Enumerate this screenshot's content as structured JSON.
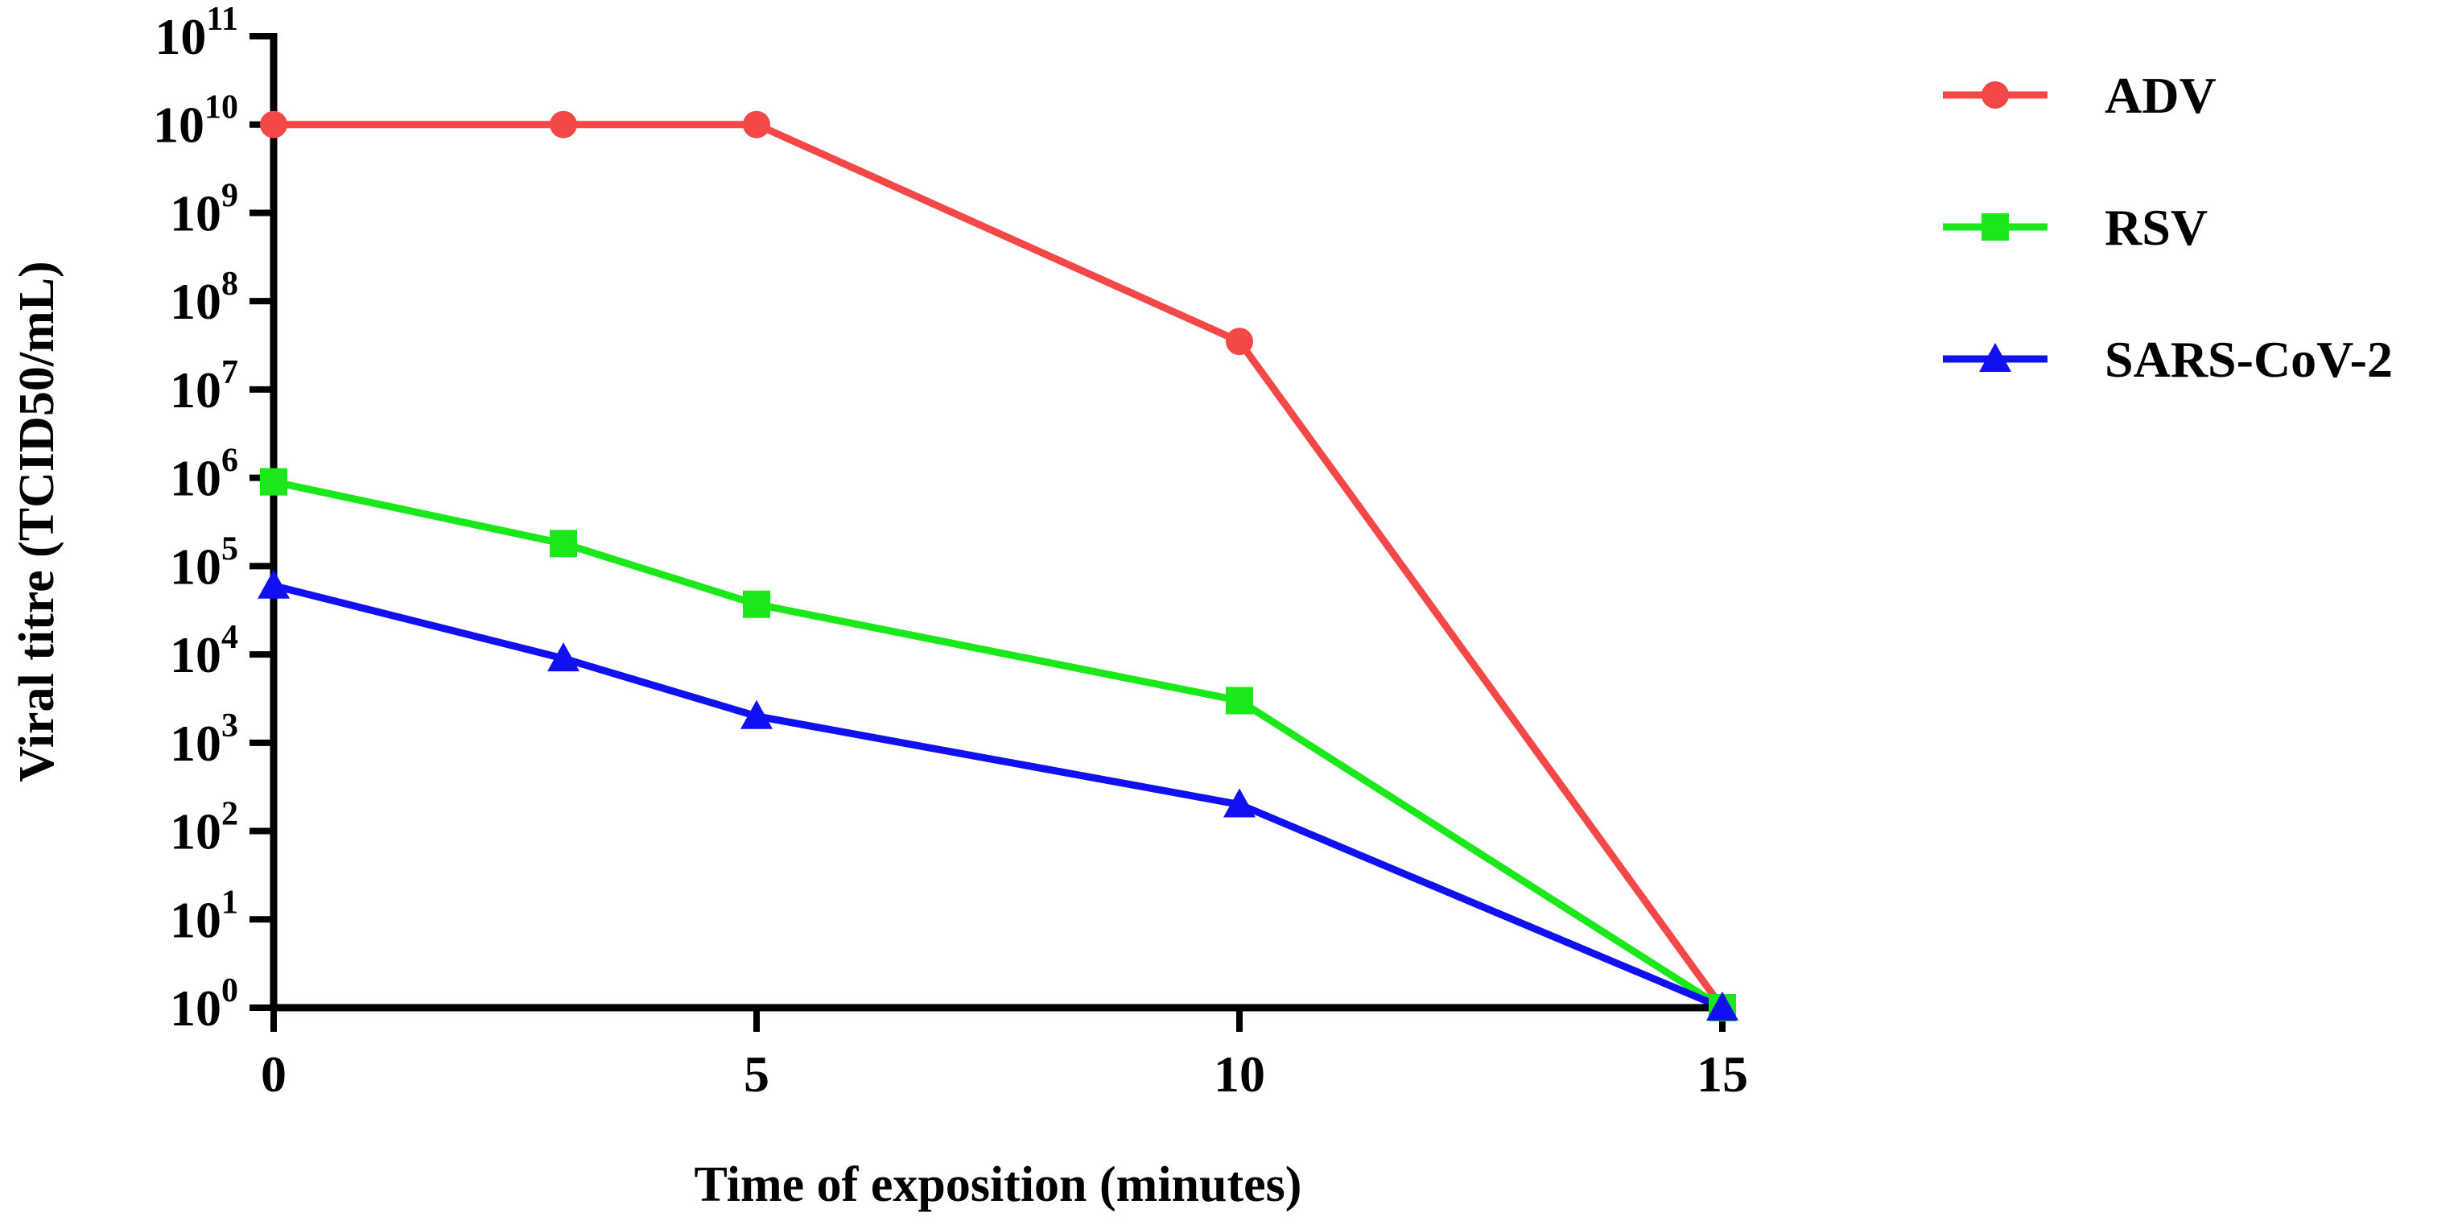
{
  "chart_data": {
    "type": "line",
    "xlabel": "Time of exposition (minutes)",
    "ylabel": "Viral titre (TCID50/mL)",
    "yscale": "log",
    "xlim": [
      0,
      15
    ],
    "ylim": [
      1,
      100000000000
    ],
    "x_ticks": [
      0,
      5,
      10,
      15
    ],
    "y_tick_exponents": [
      0,
      1,
      2,
      3,
      4,
      5,
      6,
      7,
      8,
      9,
      10,
      11
    ],
    "y_tick_base": "10",
    "grid": false,
    "legend_position": "top-right",
    "series": [
      {
        "name": "ADV",
        "color": "#f44848",
        "marker": "circle",
        "x": [
          0,
          3,
          5,
          10,
          15
        ],
        "y": [
          10000000000,
          10000000000,
          10000000000,
          35000000,
          1
        ]
      },
      {
        "name": "RSV",
        "color": "#1ae81a",
        "marker": "square",
        "x": [
          0,
          3,
          5,
          10,
          15
        ],
        "y": [
          900000,
          180000,
          37000,
          3000,
          1
        ]
      },
      {
        "name": "SARS-CoV-2",
        "color": "#1010f0",
        "marker": "triangle",
        "x": [
          0,
          3,
          5,
          10,
          15
        ],
        "y": [
          60000,
          9000,
          2000,
          200,
          1
        ]
      }
    ]
  }
}
